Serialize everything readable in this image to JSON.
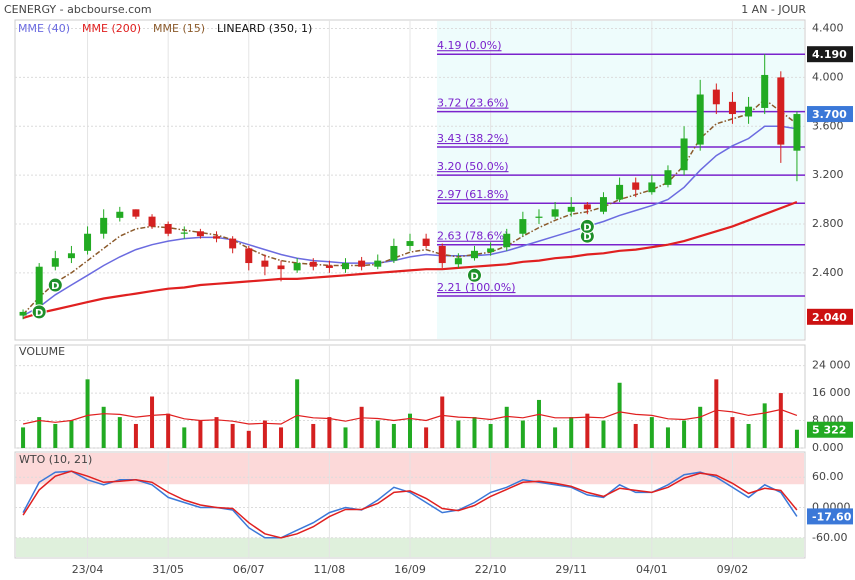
{
  "header": {
    "title": "CENERGY - abcbourse.com",
    "period": "1 AN - JOUR"
  },
  "chart_data": [
    {
      "type": "candlestick",
      "categories": [
        null,
        null,
        null,
        null,
        "23/04",
        null,
        null,
        null,
        null,
        "31/05",
        null,
        null,
        null,
        null,
        "06/07",
        null,
        null,
        null,
        null,
        "11/08",
        null,
        null,
        null,
        null,
        "16/09",
        null,
        null,
        null,
        null,
        "22/10",
        null,
        null,
        null,
        null,
        "29/11",
        null,
        null,
        null,
        null,
        "04/01",
        null,
        null,
        null,
        null,
        "09/02",
        null,
        null,
        null,
        null
      ],
      "open": [
        2.05,
        2.1,
        2.45,
        2.52,
        2.58,
        2.72,
        2.85,
        2.92,
        2.86,
        2.8,
        2.72,
        2.74,
        2.7,
        2.68,
        2.6,
        2.5,
        2.46,
        2.42,
        2.49,
        2.46,
        2.43,
        2.5,
        2.45,
        2.5,
        2.62,
        2.68,
        2.62,
        2.47,
        2.52,
        2.57,
        2.61,
        2.72,
        2.85,
        2.86,
        2.9,
        2.96,
        2.9,
        3.0,
        3.14,
        3.06,
        3.12,
        3.24,
        3.45,
        3.9,
        3.8,
        3.68,
        3.75,
        4.0,
        3.4
      ],
      "high": [
        2.1,
        2.48,
        2.58,
        2.62,
        2.78,
        2.92,
        2.94,
        2.92,
        2.88,
        2.82,
        2.78,
        2.76,
        2.74,
        2.7,
        2.62,
        2.55,
        2.5,
        2.52,
        2.52,
        2.5,
        2.52,
        2.53,
        2.55,
        2.68,
        2.72,
        2.72,
        2.64,
        2.56,
        2.62,
        2.65,
        2.76,
        2.9,
        2.92,
        2.98,
        3.02,
        2.98,
        3.06,
        3.18,
        3.18,
        3.2,
        3.28,
        3.6,
        3.98,
        3.95,
        3.88,
        3.84,
        4.19,
        4.05,
        3.72
      ],
      "low": [
        2.02,
        2.08,
        2.42,
        2.48,
        2.55,
        2.68,
        2.82,
        2.84,
        2.76,
        2.7,
        2.68,
        2.68,
        2.65,
        2.56,
        2.42,
        2.38,
        2.33,
        2.4,
        2.42,
        2.4,
        2.4,
        2.42,
        2.43,
        2.48,
        2.58,
        2.6,
        2.44,
        2.44,
        2.5,
        2.54,
        2.58,
        2.7,
        2.8,
        2.84,
        2.86,
        2.88,
        2.88,
        2.98,
        3.02,
        3.04,
        3.1,
        3.2,
        3.4,
        3.7,
        3.62,
        3.62,
        3.7,
        3.3,
        3.15
      ],
      "close": [
        2.08,
        2.45,
        2.52,
        2.56,
        2.72,
        2.85,
        2.9,
        2.86,
        2.78,
        2.72,
        2.73,
        2.7,
        2.68,
        2.6,
        2.48,
        2.45,
        2.43,
        2.48,
        2.45,
        2.44,
        2.48,
        2.45,
        2.5,
        2.62,
        2.66,
        2.62,
        2.48,
        2.52,
        2.58,
        2.6,
        2.72,
        2.84,
        2.86,
        2.92,
        2.94,
        2.92,
        3.02,
        3.12,
        3.08,
        3.14,
        3.24,
        3.5,
        3.86,
        3.78,
        3.7,
        3.76,
        4.02,
        3.45,
        3.7
      ],
      "up_color": "#22aa22",
      "down_color": "#d42020",
      "series": [
        {
          "name": "MME (40)",
          "color": "#6b6be0",
          "values": [
            2.05,
            2.12,
            2.22,
            2.3,
            2.38,
            2.46,
            2.53,
            2.59,
            2.63,
            2.66,
            2.68,
            2.69,
            2.69,
            2.67,
            2.63,
            2.59,
            2.55,
            2.52,
            2.5,
            2.49,
            2.48,
            2.48,
            2.48,
            2.5,
            2.53,
            2.55,
            2.54,
            2.54,
            2.54,
            2.55,
            2.58,
            2.62,
            2.66,
            2.7,
            2.74,
            2.78,
            2.82,
            2.87,
            2.91,
            2.95,
            3.0,
            3.1,
            3.24,
            3.36,
            3.44,
            3.5,
            3.6,
            3.6,
            3.58
          ]
        },
        {
          "name": "MME (200)",
          "color": "#e02020",
          "values": [
            2.03,
            2.07,
            2.1,
            2.13,
            2.16,
            2.19,
            2.21,
            2.23,
            2.25,
            2.27,
            2.28,
            2.3,
            2.31,
            2.32,
            2.33,
            2.34,
            2.35,
            2.35,
            2.36,
            2.37,
            2.38,
            2.39,
            2.4,
            2.41,
            2.42,
            2.43,
            2.43,
            2.44,
            2.45,
            2.46,
            2.47,
            2.49,
            2.5,
            2.52,
            2.53,
            2.55,
            2.56,
            2.58,
            2.59,
            2.61,
            2.63,
            2.66,
            2.7,
            2.74,
            2.78,
            2.83,
            2.88,
            2.93,
            2.98
          ]
        },
        {
          "name": "MME (15)",
          "color": "#8b5a2b",
          "dashed": true,
          "values": [
            2.06,
            2.2,
            2.32,
            2.4,
            2.5,
            2.6,
            2.7,
            2.76,
            2.78,
            2.77,
            2.75,
            2.73,
            2.71,
            2.67,
            2.6,
            2.54,
            2.5,
            2.48,
            2.47,
            2.46,
            2.46,
            2.46,
            2.47,
            2.52,
            2.57,
            2.59,
            2.55,
            2.53,
            2.55,
            2.57,
            2.62,
            2.7,
            2.77,
            2.83,
            2.88,
            2.9,
            2.94,
            3.0,
            3.04,
            3.08,
            3.14,
            3.28,
            3.5,
            3.62,
            3.66,
            3.7,
            3.82,
            3.72,
            3.62
          ]
        }
      ],
      "legend_extra": "LINEARD (350, 1)",
      "ylim": [
        1.85,
        4.47
      ],
      "yticks": [
        {
          "value": 4.4,
          "label": "4.400"
        },
        {
          "value": 4.0,
          "label": "4.000"
        },
        {
          "value": 3.6,
          "label": "3.600"
        },
        {
          "value": 3.2,
          "label": "3.200"
        },
        {
          "value": 2.8,
          "label": "2.800"
        },
        {
          "value": 2.4,
          "label": "2.400"
        }
      ],
      "fibonacci_color": "#7a22cc",
      "fibonacci": [
        {
          "value": 4.19,
          "label": "4.19  (0.0%)"
        },
        {
          "value": 3.72,
          "label": "3.72  (23.6%)"
        },
        {
          "value": 3.43,
          "label": "3.43  (38.2%)"
        },
        {
          "value": 3.2,
          "label": "3.20  (50.0%)"
        },
        {
          "value": 2.97,
          "label": "2.97  (61.8%)"
        },
        {
          "value": 2.63,
          "label": "2.63  (78.6%)"
        },
        {
          "value": 2.21,
          "label": "2.21  (100.0%)"
        }
      ],
      "price_tags": [
        {
          "value": 4.19,
          "label": "4.190",
          "color": "#1a1a1a"
        },
        {
          "value": 3.7,
          "label": "3.700",
          "color": "#3b78d8"
        },
        {
          "value": 2.04,
          "label": "2.040",
          "color": "#cc1111"
        }
      ],
      "signals": [
        {
          "index": 1,
          "value": 2.08,
          "label": "D"
        },
        {
          "index": 2,
          "value": 2.3,
          "label": "D"
        },
        {
          "index": 28,
          "value": 2.38,
          "label": "D"
        },
        {
          "index": 35,
          "value": 2.7,
          "label": "D"
        },
        {
          "index": 35,
          "value": 2.78,
          "label": "D"
        }
      ]
    },
    {
      "type": "bar",
      "title": "VOLUME",
      "values": [
        6000,
        9000,
        7000,
        8000,
        20000,
        12000,
        9000,
        7000,
        15000,
        10000,
        6000,
        8000,
        9000,
        7000,
        5000,
        8000,
        6000,
        20000,
        7000,
        9000,
        6000,
        12000,
        8000,
        7000,
        10000,
        6000,
        15000,
        8000,
        9000,
        7000,
        12000,
        8000,
        14000,
        6000,
        9000,
        10000,
        8000,
        19000,
        7000,
        9000,
        6000,
        8000,
        12000,
        20000,
        9000,
        7000,
        13000,
        16000,
        5322
      ],
      "average": {
        "color": "#e02020",
        "values": [
          7000,
          8000,
          7500,
          8000,
          9500,
          10000,
          9800,
          9000,
          9500,
          9800,
          8500,
          8000,
          8200,
          7800,
          7000,
          7200,
          7000,
          9500,
          8800,
          8600,
          7800,
          8800,
          8600,
          8000,
          8600,
          8000,
          9500,
          9000,
          8800,
          8300,
          9200,
          8800,
          9800,
          8800,
          8800,
          9000,
          8800,
          10500,
          9800,
          9500,
          8500,
          8300,
          9000,
          11000,
          10500,
          9500,
          10200,
          11200,
          9500
        ]
      },
      "ylim": [
        0,
        30000
      ],
      "yticks": [
        {
          "value": 24000,
          "label": "24 000"
        },
        {
          "value": 16000,
          "label": "16 000"
        },
        {
          "value": 8000,
          "label": "8 000"
        },
        {
          "value": 0,
          "label": "0.000"
        }
      ],
      "last_tag": {
        "value": 5322,
        "label": "5 322",
        "color": "#22aa22"
      }
    },
    {
      "type": "line",
      "title": "WTO (10, 21)",
      "series": [
        {
          "color": "#3b78d8",
          "values": [
            -10,
            50,
            70,
            72,
            55,
            45,
            55,
            55,
            45,
            20,
            10,
            0,
            0,
            -5,
            -40,
            -60,
            -60,
            -45,
            -30,
            -10,
            0,
            -5,
            15,
            40,
            30,
            10,
            -10,
            -5,
            10,
            30,
            40,
            55,
            50,
            45,
            40,
            25,
            20,
            45,
            30,
            30,
            45,
            65,
            70,
            60,
            40,
            20,
            45,
            30,
            -17.6
          ]
        },
        {
          "color": "#e02020",
          "values": [
            -15,
            35,
            62,
            72,
            62,
            50,
            52,
            55,
            50,
            30,
            15,
            5,
            0,
            -2,
            -30,
            -52,
            -60,
            -52,
            -38,
            -18,
            -4,
            -4,
            8,
            30,
            33,
            18,
            -2,
            -6,
            4,
            22,
            36,
            50,
            52,
            48,
            42,
            30,
            22,
            38,
            34,
            30,
            40,
            58,
            68,
            64,
            48,
            28,
            38,
            34,
            -5
          ]
        }
      ],
      "ylim": [
        -100,
        110
      ],
      "yticks": [
        {
          "value": 60,
          "label": "60.00"
        },
        {
          "value": 0,
          "label": "0.0000"
        },
        {
          "value": -60,
          "label": "-60.00"
        }
      ],
      "last_tag": {
        "value": -17.6,
        "label": "-17.60",
        "color": "#3b78d8"
      }
    }
  ]
}
